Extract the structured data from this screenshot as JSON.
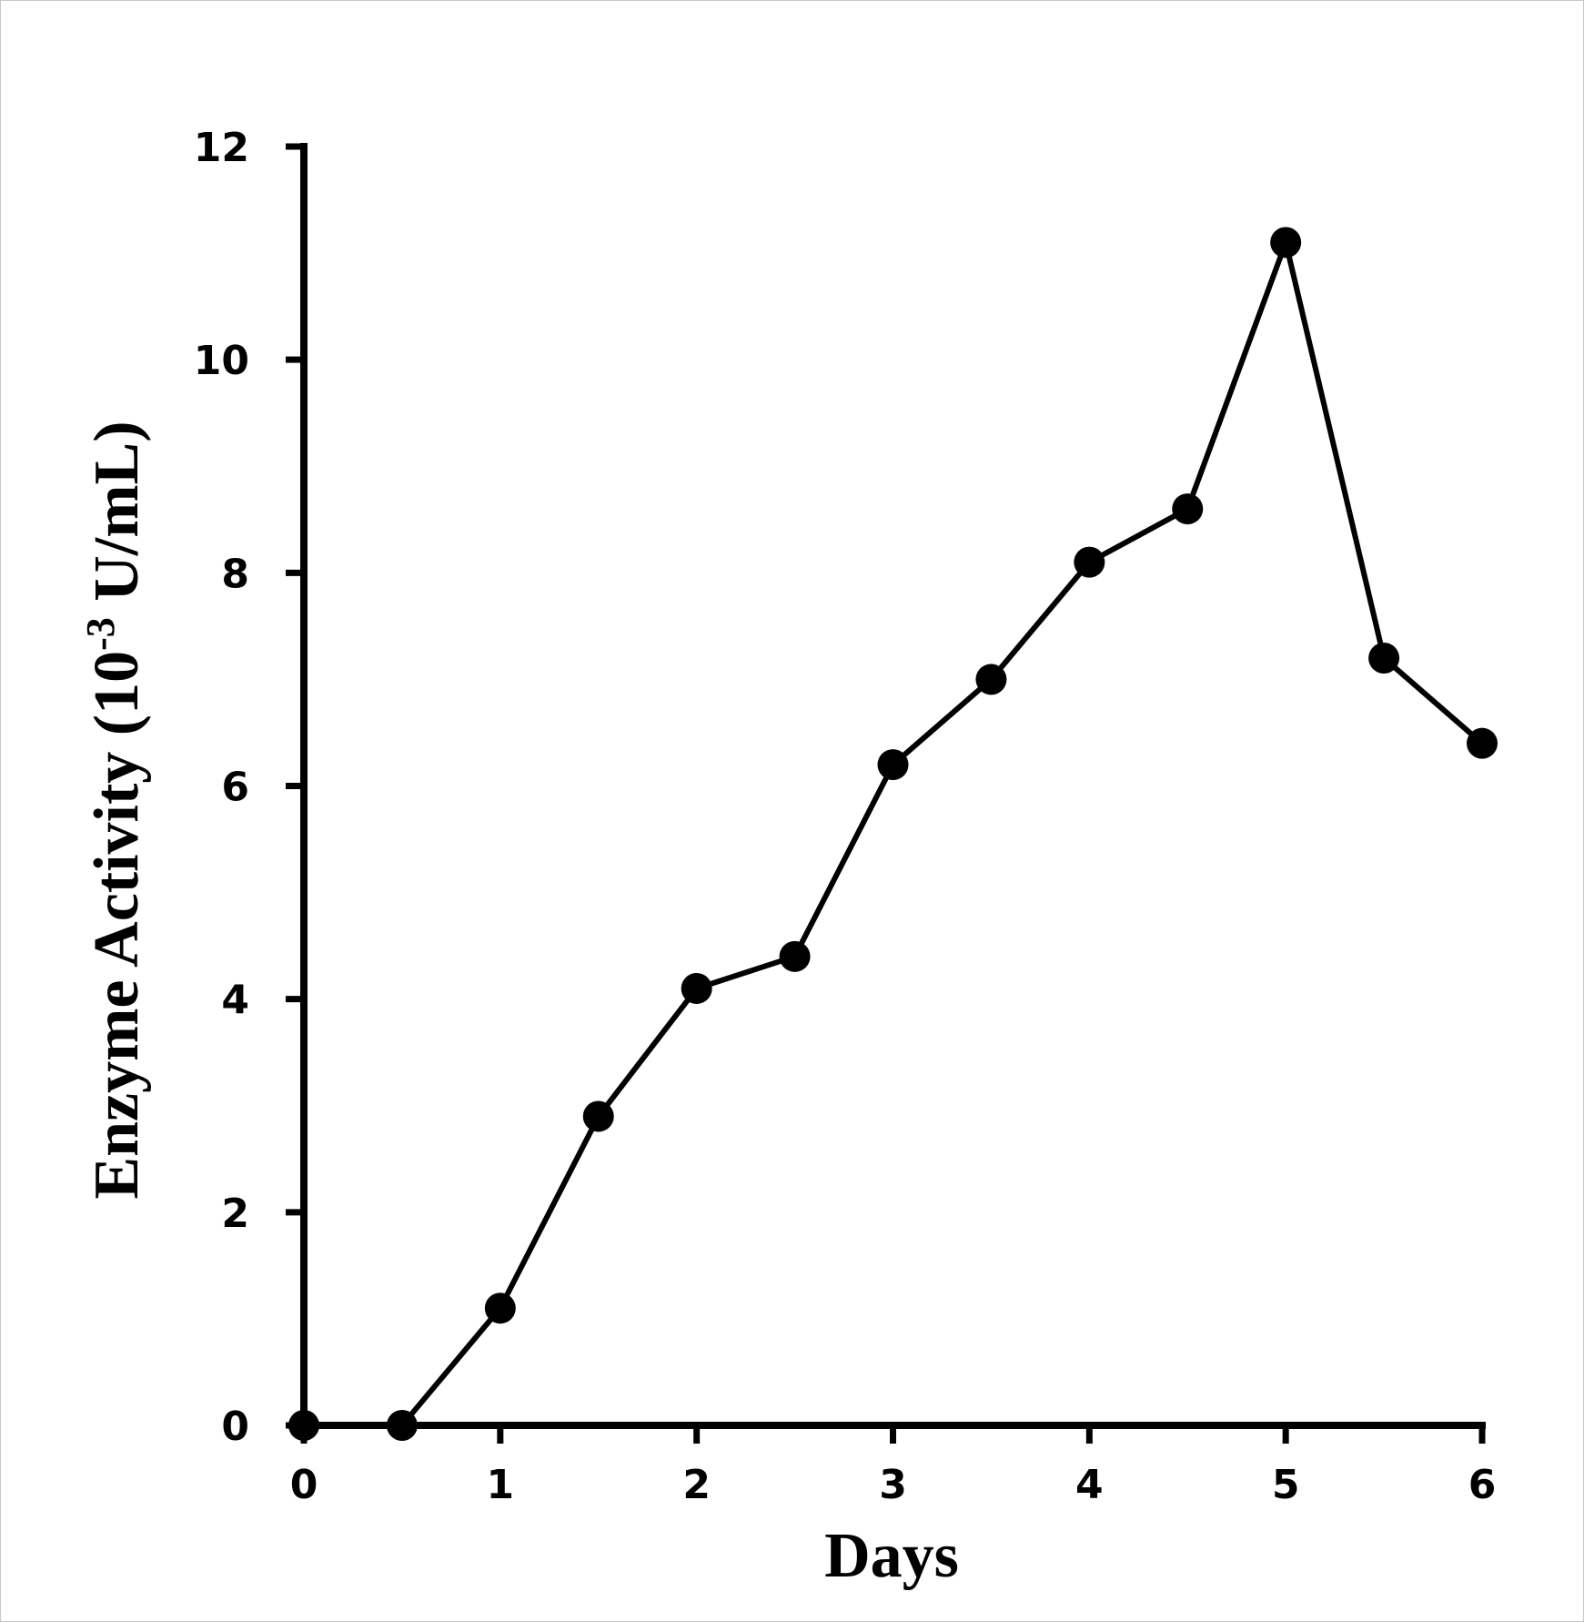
{
  "chart_data": {
    "type": "line",
    "xlabel": "Days",
    "ylabel": {
      "main": "Enzyme Activity (10",
      "superscript": "-3",
      "unit": " U/mL)"
    },
    "xlim": [
      0,
      6
    ],
    "ylim": [
      0,
      12
    ],
    "x_ticks": [
      0,
      1,
      2,
      3,
      4,
      5,
      6
    ],
    "x_tick_labels": [
      "0",
      "1",
      "2",
      "3",
      "4",
      "5",
      "6"
    ],
    "y_ticks": [
      0,
      2,
      4,
      6,
      8,
      10,
      12
    ],
    "y_tick_labels": [
      "0",
      "2",
      "4",
      "6",
      "8",
      "10",
      "12"
    ],
    "grid": false,
    "series": [
      {
        "color": "#000000",
        "marker": "circle",
        "x": [
          0,
          0.5,
          1,
          1.5,
          2,
          2.5,
          3,
          3.5,
          4,
          4.5,
          5,
          5.5,
          6
        ],
        "y": [
          0,
          0,
          1.1,
          2.9,
          4.1,
          4.4,
          6.2,
          7.0,
          8.1,
          8.6,
          11.1,
          7.2,
          6.4
        ]
      }
    ]
  }
}
